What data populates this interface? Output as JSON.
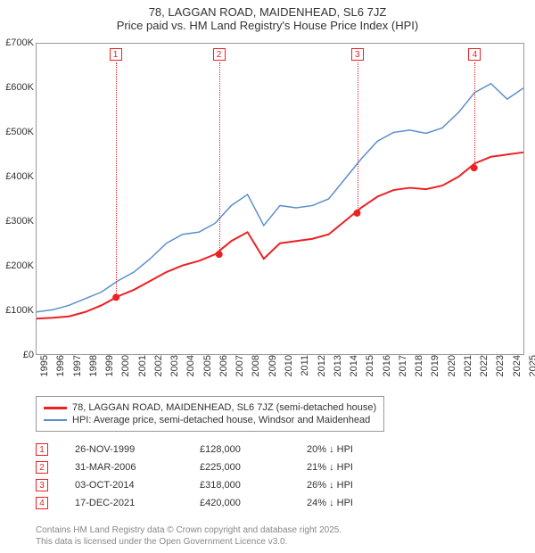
{
  "title1": "78, LAGGAN ROAD, MAIDENHEAD, SL6 7JZ",
  "title2": "Price paid vs. HM Land Registry's House Price Index (HPI)",
  "chart": {
    "type": "line",
    "background_color": "#ffffff",
    "border_color": "#999999",
    "x_years": [
      1995,
      1996,
      1997,
      1998,
      1999,
      2000,
      2001,
      2002,
      2003,
      2004,
      2005,
      2006,
      2007,
      2008,
      2009,
      2010,
      2011,
      2012,
      2013,
      2014,
      2015,
      2016,
      2017,
      2018,
      2019,
      2020,
      2021,
      2022,
      2023,
      2024,
      2025
    ],
    "ylim": [
      0,
      700000
    ],
    "ytick_step": 100000,
    "ytick_labels": [
      "£0",
      "£100K",
      "£200K",
      "£300K",
      "£400K",
      "£500K",
      "£600K",
      "£700K"
    ],
    "series": [
      {
        "name": "property",
        "color": "#ed2024",
        "width": 2,
        "values_by_year": {
          "1995": 80000,
          "1996": 82000,
          "1997": 85000,
          "1998": 95000,
          "1999": 110000,
          "2000": 130000,
          "2001": 145000,
          "2002": 165000,
          "2003": 185000,
          "2004": 200000,
          "2005": 210000,
          "2006": 225000,
          "2007": 255000,
          "2008": 275000,
          "2009": 215000,
          "2010": 250000,
          "2011": 255000,
          "2012": 260000,
          "2013": 270000,
          "2014": 300000,
          "2015": 330000,
          "2016": 355000,
          "2017": 370000,
          "2018": 375000,
          "2019": 372000,
          "2020": 380000,
          "2021": 400000,
          "2022": 430000,
          "2023": 445000,
          "2024": 450000,
          "2025": 455000
        }
      },
      {
        "name": "hpi",
        "color": "#5b8ecb",
        "width": 1.5,
        "values_by_year": {
          "1995": 95000,
          "1996": 100000,
          "1997": 110000,
          "1998": 125000,
          "1999": 140000,
          "2000": 165000,
          "2001": 185000,
          "2002": 215000,
          "2003": 250000,
          "2004": 270000,
          "2005": 275000,
          "2006": 295000,
          "2007": 335000,
          "2008": 360000,
          "2009": 290000,
          "2010": 335000,
          "2011": 330000,
          "2012": 335000,
          "2013": 350000,
          "2014": 395000,
          "2015": 440000,
          "2016": 480000,
          "2017": 500000,
          "2018": 505000,
          "2019": 498000,
          "2020": 510000,
          "2021": 545000,
          "2022": 590000,
          "2023": 610000,
          "2024": 575000,
          "2025": 600000
        }
      }
    ],
    "sale_markers": [
      {
        "n": "1",
        "year": 1999.9,
        "price": 128000
      },
      {
        "n": "2",
        "year": 2006.25,
        "price": 225000
      },
      {
        "n": "3",
        "year": 2014.75,
        "price": 318000
      },
      {
        "n": "4",
        "year": 2021.96,
        "price": 420000
      }
    ],
    "marker_dot_color": "#ed2024",
    "marker_box_border": "#ed2024"
  },
  "legend": {
    "items": [
      {
        "color": "#ed2024",
        "label": "78, LAGGAN ROAD, MAIDENHEAD, SL6 7JZ (semi-detached house)"
      },
      {
        "color": "#5b8ecb",
        "label": "HPI: Average price, semi-detached house, Windsor and Maidenhead"
      }
    ]
  },
  "sales_table": [
    {
      "n": "1",
      "date": "26-NOV-1999",
      "price": "£128,000",
      "gap": "20% ↓ HPI"
    },
    {
      "n": "2",
      "date": "31-MAR-2006",
      "price": "£225,000",
      "gap": "21% ↓ HPI"
    },
    {
      "n": "3",
      "date": "03-OCT-2014",
      "price": "£318,000",
      "gap": "26% ↓ HPI"
    },
    {
      "n": "4",
      "date": "17-DEC-2021",
      "price": "£420,000",
      "gap": "24% ↓ HPI"
    }
  ],
  "footer1": "Contains HM Land Registry data © Crown copyright and database right 2025.",
  "footer2": "This data is licensed under the Open Government Licence v3.0."
}
